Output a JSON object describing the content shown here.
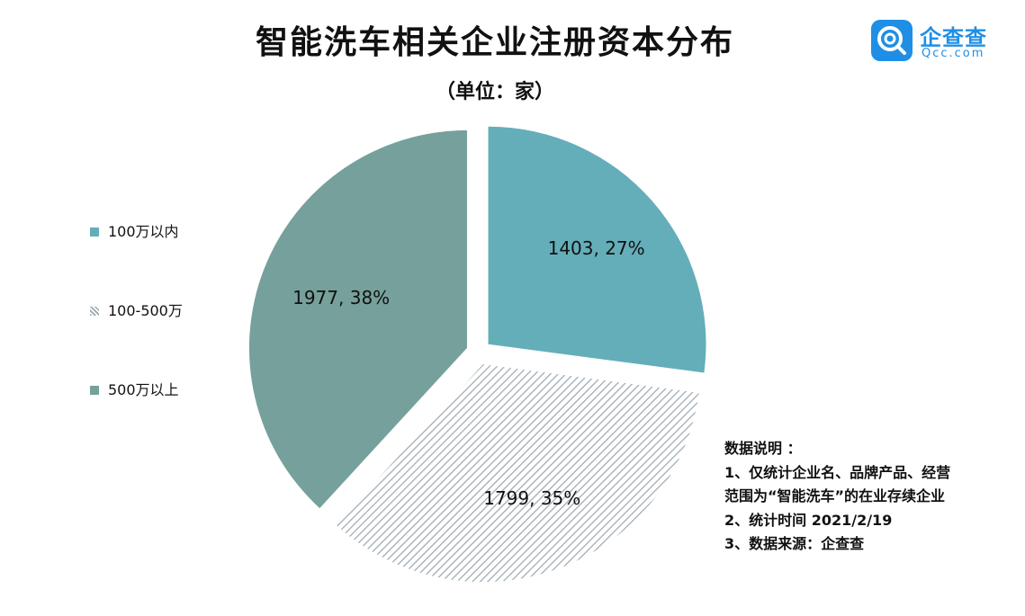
{
  "header": {
    "title": "智能洗车相关企业注册资本分布",
    "subtitle": "（单位：家）"
  },
  "logo": {
    "name_cn": "企查查",
    "name_en": "Qcc.com",
    "color": "#1f8fe6"
  },
  "chart_data": {
    "type": "pie",
    "title": "智能洗车相关企业注册资本分布",
    "subtitle": "（单位：家）",
    "legend_position": "left",
    "slices": [
      {
        "name": "100万以内",
        "value": 1403,
        "percent": 27,
        "label": "1403, 27%",
        "color": "#64aeb9",
        "pattern": "solid"
      },
      {
        "name": "100-500万",
        "value": 1799,
        "percent": 35,
        "label": "1799, 35%",
        "color": "#9aa7b0",
        "pattern": "hatch"
      },
      {
        "name": "500万以上",
        "value": 1977,
        "percent": 38,
        "label": "1977, 38%",
        "color": "#76a09c",
        "pattern": "solid"
      }
    ]
  },
  "notes": {
    "heading": "数据说明 ：",
    "lines": [
      "1、仅统计企业名、品牌产品、经营",
      "范围为“智能洗车”的在业存续企业",
      "2、统计时间  2021/2/19",
      "3、数据来源：企查查"
    ]
  }
}
